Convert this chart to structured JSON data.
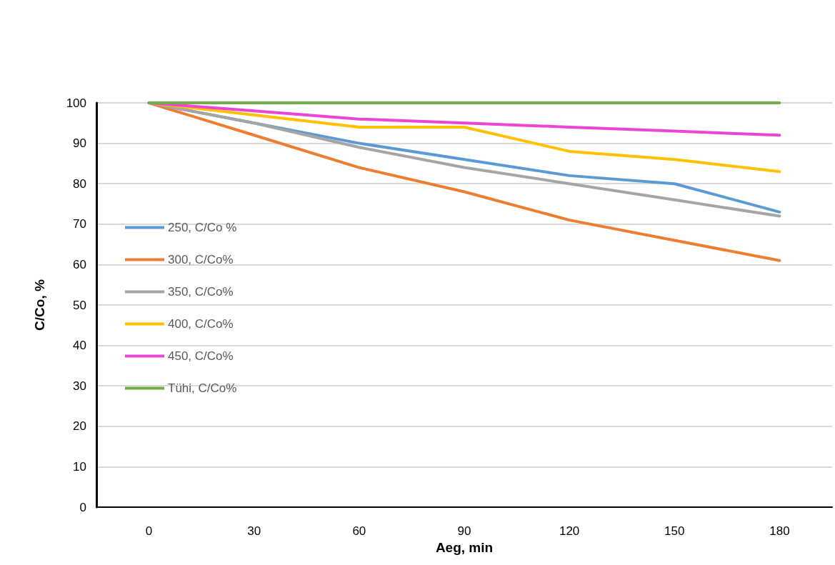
{
  "chart_data": {
    "type": "line",
    "xlabel": "Aeg, min",
    "ylabel": "C/Co, %",
    "categories": [
      "0",
      "30",
      "60",
      "90",
      "120",
      "150",
      "180"
    ],
    "series": [
      {
        "name": "250, C/Co %",
        "color": "#5b9bd5",
        "values": [
          100,
          95,
          90,
          86,
          82,
          80,
          73
        ]
      },
      {
        "name": "300, C/Co%",
        "color": "#ed7d31",
        "values": [
          100,
          92,
          84,
          78,
          71,
          66,
          61
        ]
      },
      {
        "name": "350, C/Co%",
        "color": "#a5a5a5",
        "values": [
          100,
          95,
          89,
          84,
          80,
          76,
          72
        ]
      },
      {
        "name": "400, C/Co%",
        "color": "#ffc000",
        "values": [
          100,
          97,
          94,
          94,
          88,
          86,
          83
        ]
      },
      {
        "name": "450, C/Co%",
        "color": "#ee44d6",
        "values": [
          100,
          98,
          96,
          95,
          94,
          93,
          92
        ]
      },
      {
        "name": "Tühi, C/Co%",
        "color": "#70ad47",
        "values": [
          100,
          100,
          100,
          100,
          100,
          100,
          100
        ]
      }
    ],
    "ylim": [
      0,
      100
    ],
    "yticks": [
      0,
      10,
      20,
      30,
      40,
      50,
      60,
      70,
      80,
      90,
      100
    ],
    "grid": "y",
    "legend": "left",
    "marker": "none",
    "line_style": "solid"
  }
}
